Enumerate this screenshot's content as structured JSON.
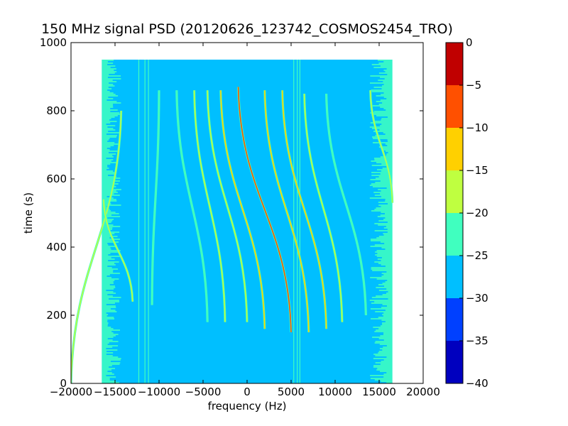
{
  "chart_data": {
    "type": "heatmap",
    "title": "150 MHz signal PSD (20120626_123742_COSMOS2454_TRO)",
    "xlabel": "frequency (Hz)",
    "ylabel": "time (s)",
    "xlim": [
      -20000,
      20000
    ],
    "ylim": [
      0,
      1000
    ],
    "xticks": [
      -20000,
      -15000,
      -10000,
      -5000,
      0,
      5000,
      10000,
      15000,
      20000
    ],
    "yticks": [
      0,
      200,
      400,
      600,
      800,
      1000
    ],
    "xtick_labels": [
      "−20000",
      "−15000",
      "−10000",
      "−5000",
      "0",
      "5000",
      "10000",
      "15000",
      "20000"
    ],
    "ytick_labels": [
      "0",
      "200",
      "400",
      "600",
      "800",
      "1000"
    ],
    "data_extent": {
      "x": [
        -16500,
        16500
      ],
      "y": [
        0,
        950
      ]
    },
    "background_level": -27.5,
    "noise_edge_level": -22.5,
    "grid": false,
    "colorbar": {
      "levels": [
        -40,
        -35,
        -30,
        -25,
        -20,
        -15,
        -10,
        -5,
        0
      ],
      "tick_labels": [
        "−40",
        "−35",
        "−30",
        "−25",
        "−20",
        "−15",
        "−10",
        "−5",
        "0"
      ],
      "colors": [
        "#0000bf",
        "#0040ff",
        "#00bfff",
        "#40ffbf",
        "#bfff40",
        "#ffd000",
        "#ff5000",
        "#c00000"
      ]
    },
    "vertical_lines": [
      {
        "x": -12300,
        "level": -22.5
      },
      {
        "x": -11600,
        "level": -22.5
      },
      {
        "x": -11200,
        "level": -22.5
      },
      {
        "x": 5300,
        "level": -22.5
      },
      {
        "x": 5700,
        "level": -22.5
      },
      {
        "x": 6000,
        "level": -22.5
      }
    ],
    "tracks": [
      {
        "x_top": -14300,
        "x_bottom": -20000,
        "y_top": 800,
        "y_bottom": 0,
        "level": -17.5
      },
      {
        "x_top": -16300,
        "x_bottom": -13000,
        "y_top": 540,
        "y_bottom": 240,
        "level": -17.5
      },
      {
        "x_top": -10000,
        "x_bottom": -10800,
        "y_top": 860,
        "y_bottom": 230,
        "level": -22.5
      },
      {
        "x_top": -8000,
        "x_bottom": -4500,
        "y_top": 860,
        "y_bottom": 180,
        "level": -22.5
      },
      {
        "x_top": -6000,
        "x_bottom": -2500,
        "y_top": 860,
        "y_bottom": 180,
        "level": -17.5
      },
      {
        "x_top": -4500,
        "x_bottom": 0,
        "y_top": 860,
        "y_bottom": 180,
        "level": -17.5
      },
      {
        "x_top": -3000,
        "x_bottom": 2000,
        "y_top": 860,
        "y_bottom": 160,
        "level": -15
      },
      {
        "x_top": -1000,
        "x_bottom": 5000,
        "y_top": 870,
        "y_bottom": 150,
        "level": -7.5
      },
      {
        "x_top": 2000,
        "x_bottom": 7000,
        "y_top": 860,
        "y_bottom": 150,
        "level": -12.5
      },
      {
        "x_top": 4000,
        "x_bottom": 9000,
        "y_top": 860,
        "y_bottom": 160,
        "level": -12.5
      },
      {
        "x_top": 6500,
        "x_bottom": 10800,
        "y_top": 850,
        "y_bottom": 180,
        "level": -17.5
      },
      {
        "x_top": 9000,
        "x_bottom": 13500,
        "y_top": 850,
        "y_bottom": 200,
        "level": -22.5
      },
      {
        "x_top": 14000,
        "x_bottom": 16500,
        "y_top": 860,
        "y_bottom": 530,
        "level": -17.5
      }
    ]
  }
}
